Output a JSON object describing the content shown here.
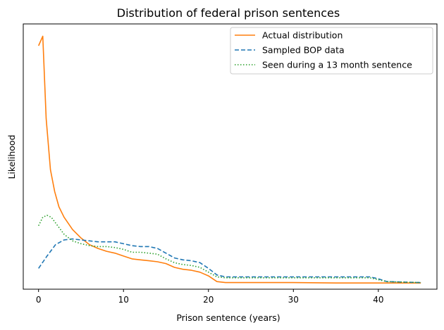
{
  "chart_data": {
    "type": "line",
    "title": "Distribution of federal prison sentences",
    "xlabel": "Prison sentence (years)",
    "ylabel": "Likelihood",
    "xlim": [
      -1.8,
      46.9
    ],
    "ylim": [
      -0.005,
      0.275
    ],
    "xticks": [
      0,
      10,
      20,
      30,
      40
    ],
    "xtick_labels": [
      "0",
      "10",
      "20",
      "30",
      "40"
    ],
    "yticks_shown": false,
    "grid": false,
    "legend_position": "top-right",
    "series": [
      {
        "name": "Actual distribution",
        "color": "#ff7f0e",
        "dash": "solid",
        "x": [
          0,
          0.5,
          0.9,
          1.4,
          1.9,
          2.4,
          3.0,
          4.0,
          5.0,
          6.0,
          7.0,
          8.0,
          9.0,
          10.0,
          11.0,
          12.0,
          13.0,
          14.0,
          15.0,
          16.0,
          17.0,
          18.0,
          19.0,
          20.0,
          21.0,
          22.0,
          25.0,
          30.0,
          35.0,
          40.0,
          45.0
        ],
        "values": [
          0.252,
          0.262,
          0.175,
          0.121,
          0.098,
          0.082,
          0.071,
          0.058,
          0.049,
          0.042,
          0.038,
          0.035,
          0.033,
          0.03,
          0.027,
          0.026,
          0.025,
          0.024,
          0.022,
          0.018,
          0.016,
          0.015,
          0.013,
          0.009,
          0.003,
          0.002,
          0.002,
          0.002,
          0.0015,
          0.0015,
          0.0015
        ]
      },
      {
        "name": "Sampled BOP data",
        "color": "#1f77b4",
        "dash": "dashed",
        "x": [
          0,
          1.0,
          2.0,
          3.0,
          4.0,
          5.0,
          6.0,
          7.0,
          8.0,
          9.0,
          10.0,
          11.0,
          12.0,
          13.0,
          14.0,
          15.0,
          16.0,
          17.0,
          18.0,
          19.0,
          20.0,
          21.0,
          22.0,
          25.0,
          30.0,
          35.0,
          38.0,
          39.0,
          40.0,
          41.0,
          45.0
        ],
        "values": [
          0.017,
          0.03,
          0.042,
          0.047,
          0.048,
          0.047,
          0.046,
          0.045,
          0.045,
          0.045,
          0.043,
          0.041,
          0.04,
          0.04,
          0.038,
          0.033,
          0.028,
          0.026,
          0.025,
          0.023,
          0.017,
          0.01,
          0.008,
          0.008,
          0.008,
          0.008,
          0.008,
          0.008,
          0.006,
          0.003,
          0.002
        ]
      },
      {
        "name": "Seen during a 13 month sentence",
        "color": "#2ca02c",
        "dash": "dotted",
        "x": [
          0,
          0.5,
          1.0,
          1.5,
          2.0,
          3.0,
          4.0,
          5.0,
          6.0,
          7.0,
          8.0,
          9.0,
          10.0,
          11.0,
          12.0,
          13.0,
          14.0,
          15.0,
          16.0,
          17.0,
          18.0,
          19.0,
          20.0,
          21.0,
          22.0,
          25.0,
          30.0,
          35.0,
          38.0,
          39.0,
          40.0,
          41.0,
          45.0
        ],
        "values": [
          0.062,
          0.071,
          0.073,
          0.071,
          0.065,
          0.053,
          0.046,
          0.043,
          0.041,
          0.04,
          0.04,
          0.039,
          0.037,
          0.034,
          0.034,
          0.033,
          0.032,
          0.027,
          0.023,
          0.021,
          0.02,
          0.018,
          0.013,
          0.008,
          0.007,
          0.007,
          0.007,
          0.007,
          0.007,
          0.007,
          0.005,
          0.003,
          0.002
        ]
      }
    ]
  }
}
